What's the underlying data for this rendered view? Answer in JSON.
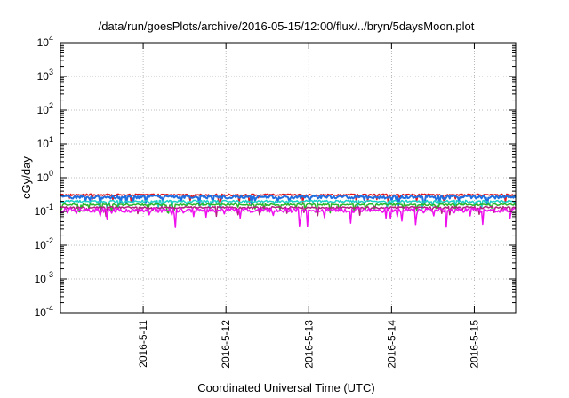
{
  "chart_data": {
    "type": "line",
    "title": "/data/run/goesPlots/archive/2016-05-15/12:00/flux/../bryn/5daysMoon.plot",
    "xlabel": "Coordinated Universal Time (UTC)",
    "ylabel": "cGy/day",
    "yscale": "log",
    "ylim": [
      0.0001,
      10000
    ],
    "xlim": [
      "2016-05-10 00:00",
      "2016-05-15 12:00"
    ],
    "grid": true,
    "legend": "none",
    "x_ticks": [
      "2016-5-11",
      "2016-5-12",
      "2016-5-13",
      "2016-5-14",
      "2016-5-15"
    ],
    "y_ticks": [
      {
        "base": "10",
        "exp": "-4",
        "value": 0.0001
      },
      {
        "base": "10",
        "exp": "-3",
        "value": 0.001
      },
      {
        "base": "10",
        "exp": "-2",
        "value": 0.01
      },
      {
        "base": "10",
        "exp": "-1",
        "value": 0.1
      },
      {
        "base": "10",
        "exp": "0",
        "value": 1
      },
      {
        "base": "10",
        "exp": "1",
        "value": 10
      },
      {
        "base": "10",
        "exp": "2",
        "value": 100
      },
      {
        "base": "10",
        "exp": "3",
        "value": 1000
      },
      {
        "base": "10",
        "exp": "4",
        "value": 10000
      }
    ],
    "series": [
      {
        "color": "#e3171b",
        "typical": 0.31,
        "spread": 0.12
      },
      {
        "color": "#1f6fe0",
        "typical": 0.27,
        "spread": 0.22
      },
      {
        "color": "#18d0c8",
        "typical": 0.2,
        "spread": 0.15
      },
      {
        "color": "#2ab52a",
        "typical": 0.16,
        "spread": 0.13
      },
      {
        "color": "#b0237e",
        "typical": 0.13,
        "spread": 0.14
      },
      {
        "color": "#ee11ee",
        "typical": 0.11,
        "spread": 0.3
      }
    ]
  }
}
